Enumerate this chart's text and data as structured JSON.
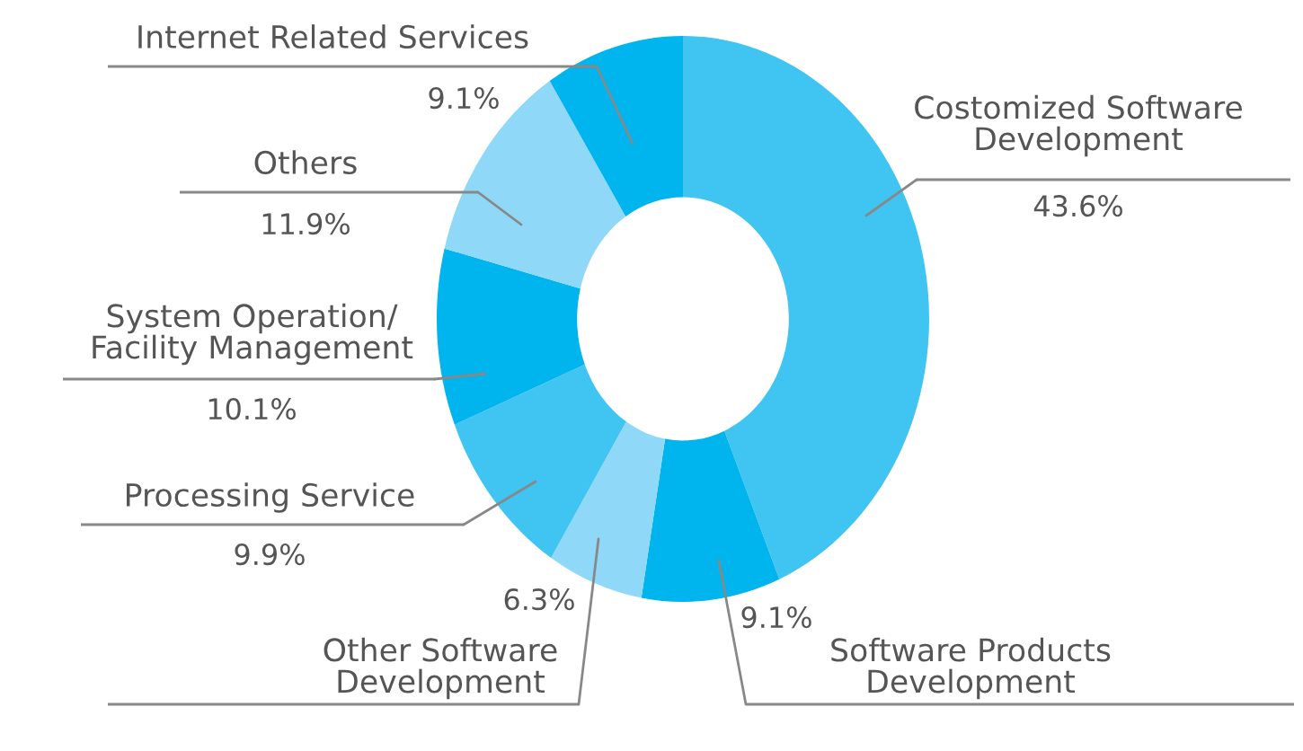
{
  "chart_data": {
    "type": "donut",
    "categories": [
      "Costomized Software\nDevelopment",
      "Software Products\nDevelopment",
      "Other Software\nDevelopment",
      "Processing Service",
      "System Operation/\nFacility Management",
      "Others",
      "Internet Related Services"
    ],
    "values": [
      43.6,
      9.1,
      6.3,
      9.9,
      10.1,
      11.9,
      9.1
    ],
    "value_labels": [
      "43.6%",
      "9.1%",
      "6.3%",
      "9.9%",
      "10.1%",
      "11.9%",
      "9.1%"
    ],
    "colors": [
      "#40c4f2",
      "#00b4ee",
      "#8fd8f7",
      "#40c4f2",
      "#00b4ee",
      "#8fd8f7",
      "#00b4ee"
    ],
    "legend": false
  }
}
